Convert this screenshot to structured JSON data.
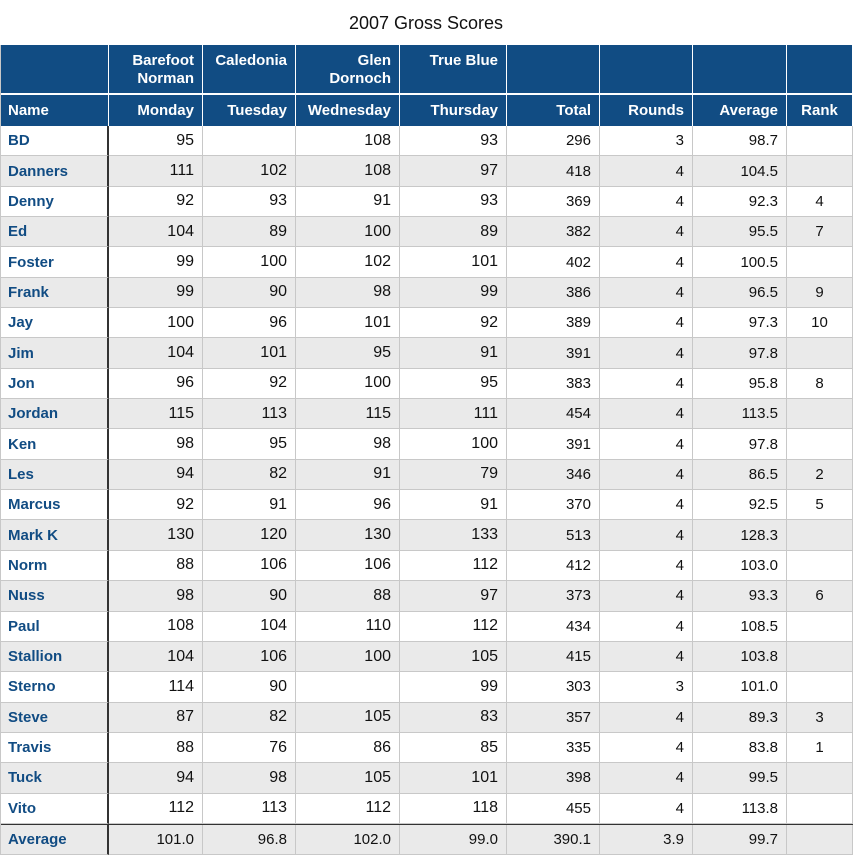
{
  "title": "2007 Gross Scores",
  "courses": [
    "",
    "Barefoot Norman",
    "Caledonia",
    "Glen Dornoch",
    "True Blue",
    "",
    "",
    "",
    ""
  ],
  "course_lines": [
    [
      "",
      ""
    ],
    [
      "Barefoot",
      "Norman"
    ],
    [
      "Caledonia",
      ""
    ],
    [
      "Glen",
      "Dornoch"
    ],
    [
      "True Blue",
      ""
    ],
    [
      "",
      ""
    ],
    [
      "",
      ""
    ],
    [
      "",
      ""
    ],
    [
      "",
      ""
    ]
  ],
  "columns": [
    "Name",
    "Monday",
    "Tuesday",
    "Wednesday",
    "Thursday",
    "Total",
    "Rounds",
    "Average",
    "Rank"
  ],
  "rows": [
    [
      "BD",
      "95",
      "",
      "108",
      "93",
      "296",
      "3",
      "98.7",
      ""
    ],
    [
      "Danners",
      "111",
      "102",
      "108",
      "97",
      "418",
      "4",
      "104.5",
      ""
    ],
    [
      "Denny",
      "92",
      "93",
      "91",
      "93",
      "369",
      "4",
      "92.3",
      "4"
    ],
    [
      "Ed",
      "104",
      "89",
      "100",
      "89",
      "382",
      "4",
      "95.5",
      "7"
    ],
    [
      "Foster",
      "99",
      "100",
      "102",
      "101",
      "402",
      "4",
      "100.5",
      ""
    ],
    [
      "Frank",
      "99",
      "90",
      "98",
      "99",
      "386",
      "4",
      "96.5",
      "9"
    ],
    [
      "Jay",
      "100",
      "96",
      "101",
      "92",
      "389",
      "4",
      "97.3",
      "10"
    ],
    [
      "Jim",
      "104",
      "101",
      "95",
      "91",
      "391",
      "4",
      "97.8",
      ""
    ],
    [
      "Jon",
      "96",
      "92",
      "100",
      "95",
      "383",
      "4",
      "95.8",
      "8"
    ],
    [
      "Jordan",
      "115",
      "113",
      "115",
      "111",
      "454",
      "4",
      "113.5",
      ""
    ],
    [
      "Ken",
      "98",
      "95",
      "98",
      "100",
      "391",
      "4",
      "97.8",
      ""
    ],
    [
      "Les",
      "94",
      "82",
      "91",
      "79",
      "346",
      "4",
      "86.5",
      "2"
    ],
    [
      "Marcus",
      "92",
      "91",
      "96",
      "91",
      "370",
      "4",
      "92.5",
      "5"
    ],
    [
      "Mark K",
      "130",
      "120",
      "130",
      "133",
      "513",
      "4",
      "128.3",
      ""
    ],
    [
      "Norm",
      "88",
      "106",
      "106",
      "112",
      "412",
      "4",
      "103.0",
      ""
    ],
    [
      "Nuss",
      "98",
      "90",
      "88",
      "97",
      "373",
      "4",
      "93.3",
      "6"
    ],
    [
      "Paul",
      "108",
      "104",
      "110",
      "112",
      "434",
      "4",
      "108.5",
      ""
    ],
    [
      "Stallion",
      "104",
      "106",
      "100",
      "105",
      "415",
      "4",
      "103.8",
      ""
    ],
    [
      "Sterno",
      "114",
      "90",
      "",
      "99",
      "303",
      "3",
      "101.0",
      ""
    ],
    [
      "Steve",
      "87",
      "82",
      "105",
      "83",
      "357",
      "4",
      "89.3",
      "3"
    ],
    [
      "Travis",
      "88",
      "76",
      "86",
      "85",
      "335",
      "4",
      "83.8",
      "1"
    ],
    [
      "Tuck",
      "94",
      "98",
      "105",
      "101",
      "398",
      "4",
      "99.5",
      ""
    ],
    [
      "Vito",
      "112",
      "113",
      "112",
      "118",
      "455",
      "4",
      "113.8",
      ""
    ]
  ],
  "average_row": [
    "Average",
    "101.0",
    "96.8",
    "102.0",
    "99.0",
    "390.1",
    "3.9",
    "99.7",
    ""
  ],
  "colors": {
    "header_bg": "#114c83",
    "name_text": "#114c83",
    "stripe": "#eaeaea"
  }
}
